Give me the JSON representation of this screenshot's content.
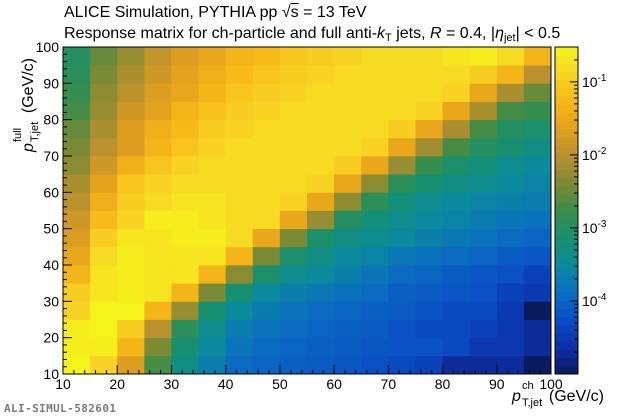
{
  "footer": "ALI-SIMUL-582601",
  "title": {
    "line1_pre": "ALICE Simulation, PYTHIA pp ",
    "line1_sqrt": "s",
    "line1_post": " = 13 TeV",
    "line2_pre": "Response matrix for ch-particle and full anti-",
    "line2_k": "k",
    "line2_ksub": "T",
    "line2_mid": " jets, ",
    "line2_R": "R",
    "line2_Rval": " = 0.4, |",
    "line2_eta": "η",
    "line2_etasub": "jet",
    "line2_post": "| < 0.5"
  },
  "axes": {
    "x_sym": "p",
    "x_sup": "ch",
    "x_sub": "T,jet",
    "x_unit": "(GeV/c)",
    "y_sym": "p",
    "y_sup": "full",
    "y_sub": "T,jet",
    "y_unit": "(GeV/c)"
  },
  "chart_data": {
    "type": "heatmap",
    "x_range": [
      10,
      100
    ],
    "y_range": [
      10,
      100
    ],
    "x_ticks": [
      "10",
      "20",
      "30",
      "40",
      "50",
      "60",
      "70",
      "80",
      "90",
      "100"
    ],
    "y_ticks": [
      "10",
      "20",
      "30",
      "40",
      "50",
      "60",
      "70",
      "80",
      "90",
      "100"
    ],
    "nbins_x": 18,
    "nbins_y": 18,
    "bin_width": 5,
    "z_scale": "log",
    "z_range": [
      1e-05,
      0.3
    ],
    "colorbar_ticks": [
      "10^-1",
      "10^-2",
      "10^-3",
      "10^-4"
    ],
    "colorbar_tick_values": [
      0.1,
      0.01,
      0.001,
      0.0001
    ],
    "palette": [
      "#0b1a5c",
      "#0d2fa8",
      "#0a4ec4",
      "#0a6fc0",
      "#0b8a9c",
      "#17906e",
      "#3a8e4a",
      "#7d8a33",
      "#b7902e",
      "#e3a01e",
      "#f6b717",
      "#f8d525",
      "#f4f41a"
    ],
    "z_values": [
      [
        0.3,
        0.12,
        0.02,
        0.002,
        0.0005,
        0.0002,
        0.00012,
        0.0001,
        9e-05,
        8e-05,
        7e-05,
        6e-05,
        5e-05,
        4e-05,
        2e-05,
        2e-05,
        2e-05,
        1e-05
      ],
      [
        0.25,
        0.25,
        0.05,
        0.004,
        0.0007,
        0.0003,
        0.00016,
        0.00012,
        0.0001,
        9e-05,
        8e-05,
        7e-05,
        6e-05,
        6e-05,
        5e-05,
        3e-05,
        3e-05,
        2e-05
      ],
      [
        0.25,
        0.3,
        0.1,
        0.01,
        0.0012,
        0.0004,
        0.0002,
        0.00015,
        0.00012,
        0.0001,
        9e-05,
        8e-05,
        6e-05,
        5e-05,
        5e-05,
        4e-05,
        3e-05,
        2e-05
      ],
      [
        0.12,
        0.3,
        0.3,
        0.05,
        0.006,
        0.0007,
        0.0003,
        0.0002,
        0.00015,
        0.00012,
        0.0001,
        9e-05,
        8e-05,
        6e-05,
        5e-05,
        5e-05,
        3e-05,
        1e-05
      ],
      [
        0.1,
        0.2,
        0.25,
        0.2,
        0.05,
        0.004,
        0.0007,
        0.0003,
        0.00022,
        0.00018,
        0.00014,
        0.00012,
        9e-05,
        8e-05,
        7e-05,
        6e-05,
        4e-05,
        3e-05
      ],
      [
        0.05,
        0.2,
        0.25,
        0.2,
        0.2,
        0.05,
        0.005,
        0.0008,
        0.0004,
        0.0003,
        0.00022,
        0.00016,
        0.00012,
        0.0001,
        8e-05,
        7e-05,
        6e-05,
        4e-05
      ],
      [
        0.03,
        0.15,
        0.25,
        0.2,
        0.2,
        0.2,
        0.05,
        0.004,
        0.0008,
        0.0005,
        0.0003,
        0.00025,
        0.00018,
        0.00014,
        0.00012,
        0.0001,
        8e-05,
        7e-05
      ],
      [
        0.02,
        0.1,
        0.2,
        0.2,
        0.25,
        0.25,
        0.15,
        0.03,
        0.004,
        0.0008,
        0.0005,
        0.0004,
        0.0003,
        0.00022,
        0.00018,
        0.00015,
        0.00012,
        0.0001
      ],
      [
        0.015,
        0.06,
        0.12,
        0.25,
        0.25,
        0.2,
        0.15,
        0.15,
        0.03,
        0.006,
        0.001,
        0.0006,
        0.0004,
        0.0003,
        0.00025,
        0.0002,
        0.00016,
        0.00014
      ],
      [
        0.01,
        0.04,
        0.1,
        0.15,
        0.2,
        0.2,
        0.15,
        0.15,
        0.12,
        0.03,
        0.005,
        0.0012,
        0.0006,
        0.0004,
        0.0003,
        0.00025,
        0.00022,
        0.0002
      ],
      [
        0.008,
        0.025,
        0.08,
        0.12,
        0.15,
        0.15,
        0.15,
        0.15,
        0.15,
        0.12,
        0.03,
        0.005,
        0.0012,
        0.0007,
        0.0005,
        0.0004,
        0.0003,
        0.00025
      ],
      [
        0.005,
        0.015,
        0.04,
        0.08,
        0.12,
        0.15,
        0.15,
        0.15,
        0.15,
        0.15,
        0.1,
        0.03,
        0.006,
        0.0015,
        0.0008,
        0.0006,
        0.0004,
        0.0003
      ],
      [
        0.004,
        0.01,
        0.02,
        0.05,
        0.08,
        0.12,
        0.15,
        0.15,
        0.15,
        0.15,
        0.15,
        0.12,
        0.03,
        0.007,
        0.002,
        0.001,
        0.0007,
        0.0005
      ],
      [
        0.003,
        0.008,
        0.02,
        0.04,
        0.06,
        0.1,
        0.12,
        0.15,
        0.15,
        0.15,
        0.15,
        0.15,
        0.1,
        0.03,
        0.008,
        0.002,
        0.001,
        0.0008
      ],
      [
        0.002,
        0.006,
        0.015,
        0.025,
        0.05,
        0.07,
        0.1,
        0.12,
        0.15,
        0.15,
        0.15,
        0.15,
        0.15,
        0.12,
        0.03,
        0.008,
        0.002,
        0.0015
      ],
      [
        0.0015,
        0.005,
        0.01,
        0.02,
        0.03,
        0.05,
        0.08,
        0.1,
        0.12,
        0.15,
        0.15,
        0.15,
        0.15,
        0.15,
        0.12,
        0.03,
        0.008,
        0.003
      ],
      [
        0.0012,
        0.004,
        0.008,
        0.015,
        0.025,
        0.04,
        0.06,
        0.08,
        0.1,
        0.12,
        0.15,
        0.15,
        0.15,
        0.15,
        0.15,
        0.1,
        0.05,
        0.01
      ],
      [
        0.001,
        0.003,
        0.006,
        0.012,
        0.02,
        0.03,
        0.05,
        0.06,
        0.08,
        0.1,
        0.12,
        0.15,
        0.15,
        0.15,
        0.2,
        0.25,
        0.15,
        0.05
      ]
    ]
  }
}
